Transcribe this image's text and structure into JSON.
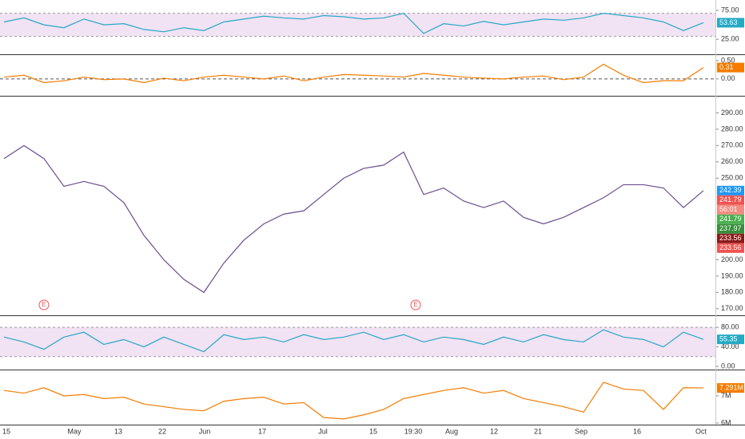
{
  "chart_data": [
    {
      "type": "line",
      "ylim": [
        -1,
        93
      ],
      "band": [
        30,
        70
      ],
      "yticks": [
        {
          "value": 75,
          "label": "75.00"
        },
        {
          "value": 25,
          "label": "25.00"
        }
      ],
      "series": [
        {
          "color": "#26a9c4",
          "values": [
            55,
            62,
            50,
            45,
            60,
            50,
            52,
            42,
            38,
            45,
            40,
            55,
            60,
            65,
            62,
            60,
            66,
            64,
            60,
            62,
            70,
            35,
            52,
            48,
            56,
            50,
            55,
            60,
            58,
            62,
            70,
            66,
            62,
            55,
            40,
            53.63
          ]
        }
      ],
      "badges": [
        {
          "value": 53.63,
          "label": "53.63",
          "color": "#26a9c4"
        }
      ]
    },
    {
      "type": "line",
      "ylim": [
        -0.46,
        0.65
      ],
      "zero_line": true,
      "yticks": [
        {
          "value": 0.5,
          "label": "0.50"
        },
        {
          "value": 0,
          "label": "0.00"
        }
      ],
      "series": [
        {
          "color": "#f57c00",
          "values": [
            0.05,
            0.1,
            -0.1,
            -0.05,
            0.05,
            -0.02,
            0,
            -0.1,
            0.02,
            -0.05,
            0.05,
            0.1,
            0.05,
            0,
            0.08,
            -0.05,
            0.05,
            0.12,
            0.1,
            0.08,
            0.05,
            0.15,
            0.1,
            0.05,
            0.02,
            0,
            0.05,
            0.08,
            -0.02,
            0.05,
            0.4,
            0.1,
            -0.1,
            -0.05,
            -0.05,
            0.31
          ]
        }
      ],
      "badges": [
        {
          "value": 0.31,
          "label": "0.31",
          "color": "#f57c00"
        }
      ]
    },
    {
      "type": "line",
      "ylim": [
        166,
        300
      ],
      "yticks": [
        {
          "value": 290,
          "label": "290.00"
        },
        {
          "value": 280,
          "label": "280.00"
        },
        {
          "value": 270,
          "label": "270.00"
        },
        {
          "value": 260,
          "label": "260.00"
        },
        {
          "value": 250,
          "label": "250.00"
        },
        {
          "value": 200,
          "label": "200.00"
        },
        {
          "value": 190,
          "label": "190.00"
        },
        {
          "value": 180,
          "label": "180.00"
        },
        {
          "value": 170,
          "label": "170.00"
        }
      ],
      "series": [
        {
          "color": "#6d4c8f",
          "values": [
            262,
            270,
            262,
            245,
            248,
            245,
            235,
            215,
            200,
            188,
            180,
            198,
            212,
            222,
            228,
            230,
            240,
            250,
            256,
            258,
            266,
            240,
            244,
            236,
            232,
            236,
            226,
            222,
            226,
            232,
            238,
            246,
            246,
            244,
            232,
            242.39
          ]
        }
      ],
      "badges": [
        {
          "value": 242.39,
          "label": "242.39",
          "color": "#2196f3"
        },
        {
          "value": 241.79,
          "label": "241.79",
          "color": "#ef5350"
        },
        {
          "label": "56:01",
          "color": "#f28b82"
        },
        {
          "value": 241.79,
          "label": "241.79",
          "color": "#4caf50"
        },
        {
          "value": 237.97,
          "label": "237.97",
          "color": "#388e3c"
        },
        {
          "value": 233.56,
          "label": "233.56",
          "color": "#8b1a1a"
        },
        {
          "value": 233.56,
          "label": "233.56",
          "color": "#ef5350"
        }
      ],
      "events": [
        "E",
        "E"
      ]
    },
    {
      "type": "line",
      "ylim": [
        -6.5,
        103
      ],
      "band": [
        20,
        80
      ],
      "yticks": [
        {
          "value": 80,
          "label": "80.00"
        },
        {
          "value": 40,
          "label": "40.00"
        },
        {
          "value": 0,
          "label": "0.00"
        }
      ],
      "series": [
        {
          "color": "#26a9c4",
          "values": [
            60,
            50,
            35,
            60,
            70,
            45,
            55,
            40,
            60,
            45,
            30,
            65,
            55,
            60,
            50,
            65,
            55,
            60,
            70,
            55,
            65,
            50,
            60,
            55,
            45,
            60,
            50,
            65,
            55,
            50,
            75,
            60,
            55,
            40,
            70,
            55.35
          ]
        }
      ],
      "badges": [
        {
          "value": 55.35,
          "label": "55.35",
          "color": "#26a9c4"
        }
      ]
    },
    {
      "type": "line",
      "ylim": [
        5940000,
        7940000
      ],
      "yticks": [
        {
          "value": 7000000,
          "label": "7M"
        },
        {
          "value": 6000000,
          "label": "6M"
        }
      ],
      "series": [
        {
          "color": "#f57c00",
          "values": [
            7200000,
            7100000,
            7300000,
            7000000,
            7050000,
            6900000,
            6950000,
            6700000,
            6600000,
            6500000,
            6450000,
            6800000,
            6900000,
            6950000,
            6700000,
            6750000,
            6200000,
            6150000,
            6300000,
            6500000,
            6900000,
            7050000,
            7200000,
            7300000,
            7100000,
            7200000,
            6900000,
            6750000,
            6600000,
            6400000,
            7500000,
            7250000,
            7200000,
            6500000,
            7300000,
            7291000
          ]
        }
      ],
      "badges": [
        {
          "value": 7291000,
          "label": "7.291M",
          "color": "#f57c00"
        }
      ],
      "xticks": [
        "15",
        "May",
        "13",
        "22",
        "Jun",
        "17",
        "Jul",
        "15",
        "19:30",
        "Aug",
        "12",
        "21",
        "Sep",
        "16",
        "Oct"
      ]
    }
  ]
}
